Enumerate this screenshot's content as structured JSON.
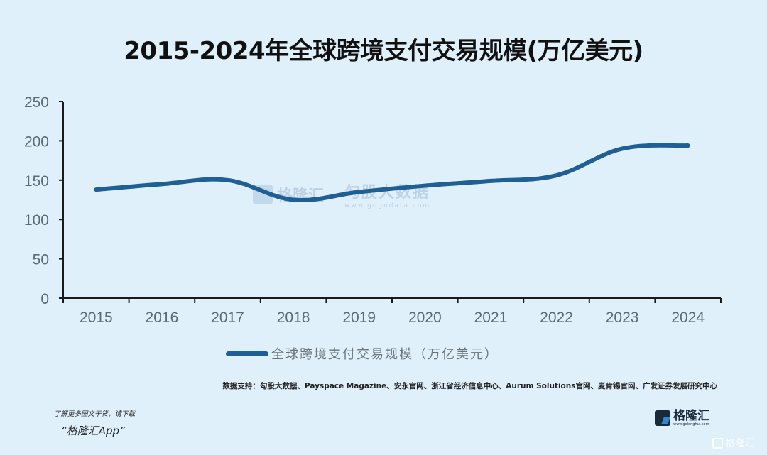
{
  "title": "2015-2024年全球跨境支付交易规模(万亿美元)",
  "chart_data": {
    "type": "line",
    "title": "2015-2024年全球跨境支付交易规模(万亿美元)",
    "xlabel": "",
    "ylabel": "",
    "categories": [
      "2015",
      "2016",
      "2017",
      "2018",
      "2019",
      "2020",
      "2021",
      "2022",
      "2023",
      "2024"
    ],
    "series": [
      {
        "name": "全球跨境支付交易规模（万亿美元）",
        "color": "#1f5f96",
        "values": [
          138,
          145,
          150,
          125,
          135,
          143,
          149,
          156,
          190,
          194
        ]
      }
    ],
    "ylim": [
      0,
      250
    ],
    "yticks": [
      "0",
      "50",
      "100",
      "150",
      "200",
      "250"
    ],
    "grid": false,
    "legend_position": "bottom",
    "smooth": true
  },
  "legend": {
    "label": "全球跨境支付交易规模（万亿美元）",
    "color": "#1f5f96"
  },
  "source": "数据支持：勾股大数据、Payspace Magazine、安永官网、浙江省经济信息中心、Aurum Solutions官网、麦肯锡官网、广发证券发展研究中心",
  "watermark": {
    "brand": "格隆汇",
    "partner": "勾股大数据",
    "partner_url": "www.gogudata.com"
  },
  "footer": {
    "promo_line": "了解更多图文干货，请下载",
    "app_name": "“格隆汇App”",
    "logo_name": "格隆汇",
    "logo_url": "www.gelonghui.com",
    "corner_watermark": "格隆汇"
  },
  "colors": {
    "background": "#dff0fb",
    "line": "#1f5f96",
    "axis": "#1a1a1a",
    "tick_text": "#5e6a72"
  }
}
